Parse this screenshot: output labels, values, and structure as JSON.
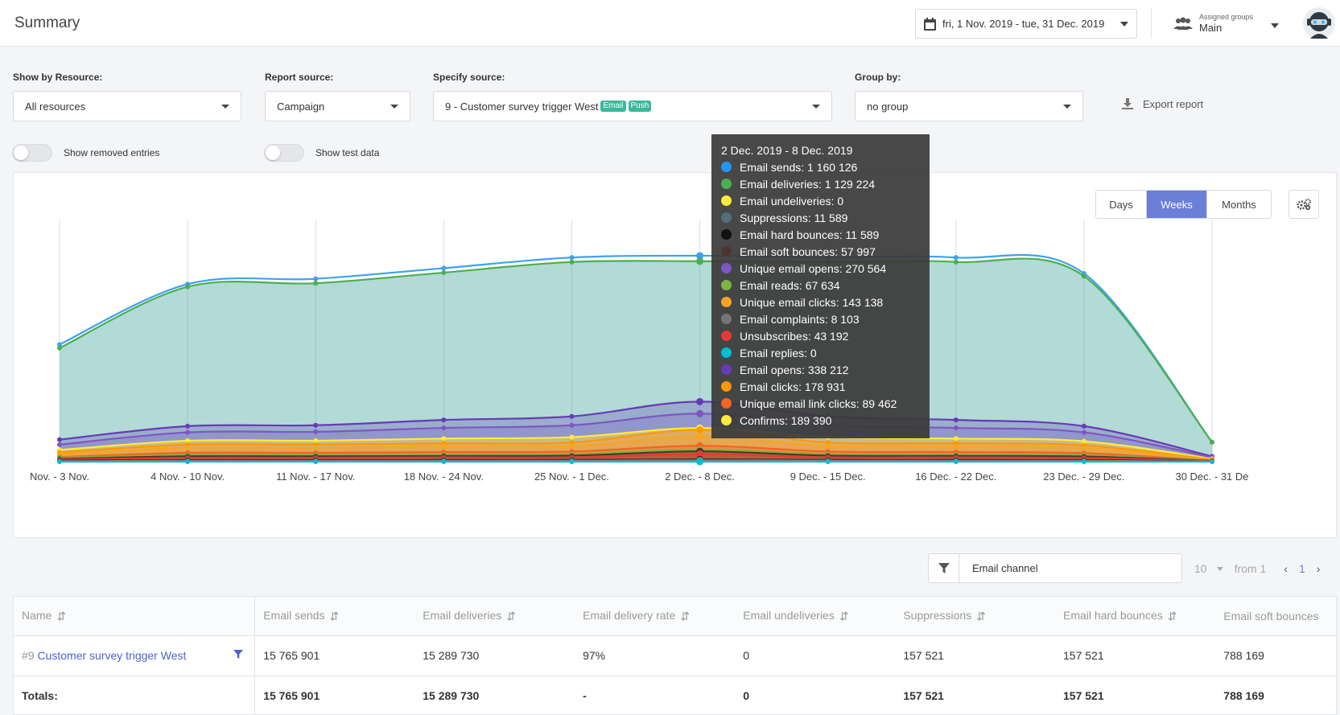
{
  "header": {
    "title": "Summary",
    "date_range": "fri, 1 Nov. 2019 - tue, 31 Dec. 2019",
    "groups_label": "Assigned groups",
    "groups_value": "Main"
  },
  "filters": {
    "resource_label": "Show by Resource:",
    "resource_value": "All resources",
    "report_source_label": "Report source:",
    "report_source_value": "Campaign",
    "specify_source_label": "Specify source:",
    "specify_source_value": "9 - Customer survey trigger West",
    "source_tags": [
      "Email",
      "Push"
    ],
    "group_by_label": "Group by:",
    "group_by_value": "no group",
    "export_label": "Export report",
    "show_removed_label": "Show removed entries",
    "show_test_label": "Show test data"
  },
  "chart_controls": {
    "periods": [
      "Days",
      "Weeks",
      "Months"
    ],
    "active_period": "Weeks"
  },
  "chart_data": {
    "type": "area",
    "x": [
      "Nov. - 3 Nov.",
      "4 Nov. - 10 Nov.",
      "11 Nov. - 17 Nov.",
      "18 Nov. - 24 Nov.",
      "25 Nov. - 1 Dec.",
      "2 Dec. - 8 Dec.",
      "9 Dec. - 15 Dec.",
      "16 Dec. - 22 Dec.",
      "23 Dec. - 29 Dec.",
      "30 Dec. - 31 De"
    ],
    "series": [
      {
        "name": "Email sends",
        "color": "#3fa0f0",
        "values": [
          660000,
          1000000,
          1030000,
          1090000,
          1150000,
          1160126,
          1150000,
          1150000,
          1060000,
          110000
        ]
      },
      {
        "name": "Email deliveries",
        "color": "#4caf50",
        "values": [
          640000,
          985000,
          1005000,
          1065000,
          1125000,
          1129224,
          1125000,
          1125000,
          1045000,
          110000
        ]
      },
      {
        "name": "Email opens",
        "color": "#673ab7",
        "values": [
          124000,
          200000,
          205000,
          235000,
          255000,
          338212,
          255000,
          235000,
          200000,
          30000
        ]
      },
      {
        "name": "Unique email opens",
        "color": "#7e57c2",
        "values": [
          96000,
          165000,
          168000,
          190000,
          205000,
          270564,
          205000,
          190000,
          165000,
          24000
        ]
      },
      {
        "name": "Confirms",
        "color": "#ffeb3b",
        "values": [
          66000,
          118000,
          118000,
          130000,
          138000,
          189390,
          138000,
          130000,
          115000,
          16000
        ]
      },
      {
        "name": "Email clicks",
        "color": "#ff9800",
        "values": [
          52000,
          96000,
          96000,
          103000,
          108000,
          178931,
          108000,
          103000,
          92000,
          12000
        ]
      },
      {
        "name": "Unique email clicks",
        "color": "#f5a623",
        "values": [
          42000,
          78000,
          78000,
          84000,
          88000,
          143138,
          88000,
          84000,
          76000,
          9000
        ]
      },
      {
        "name": "Unique email link clicks",
        "color": "#f26522",
        "values": [
          26000,
          50000,
          50000,
          54000,
          57000,
          89462,
          57000,
          54000,
          48000,
          6000
        ]
      },
      {
        "name": "Email reads",
        "color": "#7cb342",
        "values": [
          22000,
          38000,
          38000,
          40000,
          42000,
          67634,
          42000,
          40000,
          37000,
          5000
        ]
      },
      {
        "name": "Email soft bounces",
        "color": "#4e342e",
        "values": [
          16000,
          30000,
          30000,
          32000,
          34000,
          57997,
          34000,
          32000,
          29000,
          4000
        ]
      },
      {
        "name": "Unsubscribes",
        "color": "#e53935",
        "values": [
          12000,
          22000,
          22000,
          24000,
          25000,
          43192,
          25000,
          24000,
          21000,
          3000
        ]
      },
      {
        "name": "Suppressions",
        "color": "#546e7a",
        "values": [
          5000,
          8000,
          8000,
          9000,
          9500,
          11589,
          9500,
          9000,
          8000,
          1000
        ]
      },
      {
        "name": "Email hard bounces",
        "color": "#111111",
        "values": [
          5000,
          8000,
          8000,
          9000,
          9500,
          11589,
          9500,
          9000,
          8000,
          1000
        ]
      },
      {
        "name": "Email complaints",
        "color": "#757575",
        "values": [
          3000,
          5000,
          5000,
          6000,
          6500,
          8103,
          6500,
          6000,
          5000,
          800
        ]
      },
      {
        "name": "Email undeliveries",
        "color": "#fdd835",
        "values": [
          0,
          0,
          0,
          0,
          0,
          0,
          0,
          0,
          0,
          0
        ]
      },
      {
        "name": "Email replies",
        "color": "#00bcd4",
        "values": [
          0,
          0,
          0,
          0,
          0,
          0,
          0,
          0,
          0,
          0
        ]
      }
    ],
    "ylim": [
      0,
      1400000
    ],
    "grid": "vertical",
    "legend": "none"
  },
  "tooltip": {
    "title": "2 Dec. 2019 - 8 Dec. 2019",
    "rows": [
      {
        "label": "Email sends: 1 160 126",
        "color": "#2196f3"
      },
      {
        "label": "Email deliveries: 1 129 224",
        "color": "#4caf50"
      },
      {
        "label": "Email undeliveries: 0",
        "color": "#ffeb3b"
      },
      {
        "label": "Suppressions: 11 589",
        "color": "#546e7a"
      },
      {
        "label": "Email hard bounces: 11 589",
        "color": "#111111"
      },
      {
        "label": "Email soft bounces: 57 997",
        "color": "#4e342e"
      },
      {
        "label": "Unique email opens: 270 564",
        "color": "#7e57c2"
      },
      {
        "label": "Email reads: 67 634",
        "color": "#7cb342"
      },
      {
        "label": "Unique email clicks: 143 138",
        "color": "#f5a623"
      },
      {
        "label": "Email complaints: 8 103",
        "color": "#757575"
      },
      {
        "label": "Unsubscribes: 43 192",
        "color": "#e53935"
      },
      {
        "label": "Email replies: 0",
        "color": "#00bcd4"
      },
      {
        "label": "Email opens: 338 212",
        "color": "#673ab7"
      },
      {
        "label": "Email clicks: 178 931",
        "color": "#ff9800"
      },
      {
        "label": "Unique email link clicks: 89 462",
        "color": "#f26522"
      },
      {
        "label": "Confirms: 189 390",
        "color": "#ffeb3b"
      }
    ]
  },
  "table_toolbar": {
    "filter_value": "Email channel",
    "page_size": "10",
    "from_label": "from 1",
    "page": "1"
  },
  "table": {
    "columns": [
      "Name",
      "Email sends",
      "Email deliveries",
      "Email delivery rate",
      "Email undeliveries",
      "Suppressions",
      "Email hard bounces",
      "Email soft bounces"
    ],
    "rows": [
      {
        "id": "#9",
        "name": "Customer survey trigger West",
        "values": [
          "15 765 901",
          "15 289 730",
          "97%",
          "0",
          "157 521",
          "157 521",
          "788 169"
        ]
      }
    ],
    "totals": {
      "label": "Totals:",
      "values": [
        "15 765 901",
        "15 289 730",
        "-",
        "0",
        "157 521",
        "157 521",
        "788 169"
      ]
    }
  }
}
